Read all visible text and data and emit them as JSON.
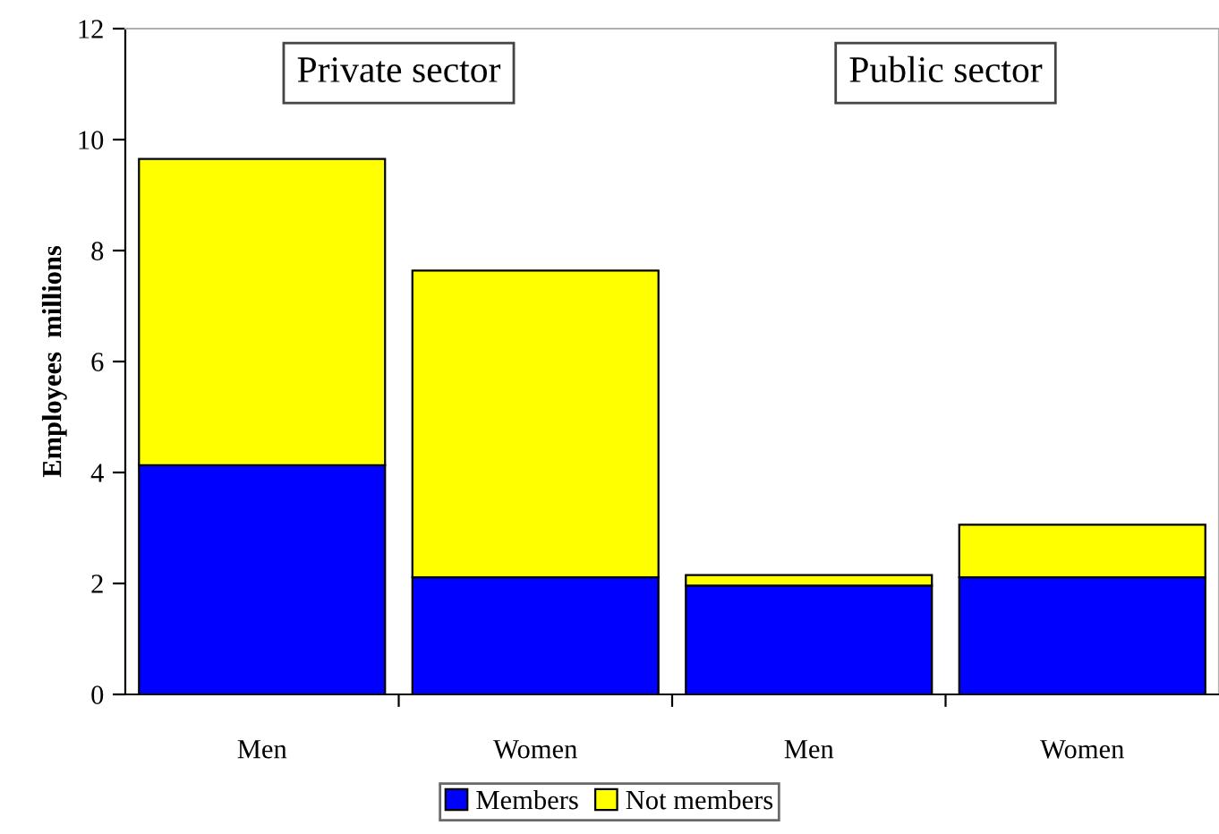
{
  "chart_data": {
    "type": "bar",
    "stacked": true,
    "ylabel": "Employees  millions",
    "categories": [
      "Men",
      "Women",
      "Men",
      "Women"
    ],
    "series": [
      {
        "name": "Members",
        "color": "#0000ff",
        "values": [
          4.13,
          2.11,
          1.96,
          2.11
        ]
      },
      {
        "name": "Not members",
        "color": "#ffff00",
        "values": [
          5.52,
          5.53,
          0.19,
          0.95
        ]
      }
    ],
    "ylim": [
      0,
      12
    ],
    "yticks": [
      0,
      2,
      4,
      6,
      8,
      10,
      12
    ],
    "grid": false,
    "legend": "bottom",
    "annotations": [
      "Private sector",
      "Public sector"
    ]
  }
}
